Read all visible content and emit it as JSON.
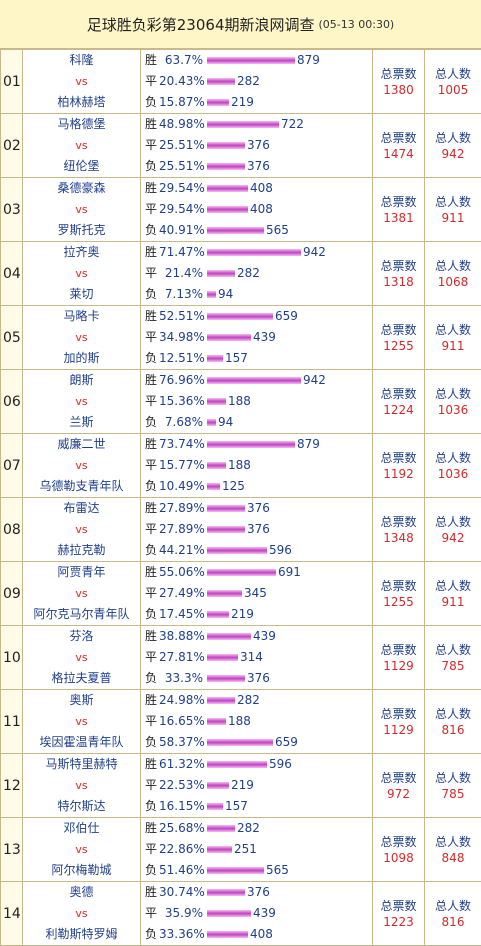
{
  "header": {
    "title": "足球胜负彩第23064期新浪网调查",
    "date": "(05-13 00:30)"
  },
  "labels": {
    "win": "胜",
    "draw": "平",
    "loss": "负",
    "vs": "vs",
    "total_votes": "总票数",
    "total_people": "总人数"
  },
  "colors": {
    "team_blue": "#1f3f8c",
    "accent_red": "#d6292c",
    "bar_magenta": "#c440c4",
    "title_bg": "#fff6c7"
  },
  "matches": [
    {
      "no": "01",
      "home": "科隆",
      "away": "柏林赫塔",
      "win_pct": "63.7%",
      "win": 879,
      "draw_pct": "20.43%",
      "draw": 282,
      "loss_pct": "15.87%",
      "loss": 219,
      "total_votes": "1380",
      "total_people": "1005"
    },
    {
      "no": "02",
      "home": "马格德堡",
      "away": "纽伦堡",
      "win_pct": "48.98%",
      "win": 722,
      "draw_pct": "25.51%",
      "draw": 376,
      "loss_pct": "25.51%",
      "loss": 376,
      "total_votes": "1474",
      "total_people": "942"
    },
    {
      "no": "03",
      "home": "桑德豪森",
      "away": "罗斯托克",
      "win_pct": "29.54%",
      "win": 408,
      "draw_pct": "29.54%",
      "draw": 408,
      "loss_pct": "40.91%",
      "loss": 565,
      "total_votes": "1381",
      "total_people": "911"
    },
    {
      "no": "04",
      "home": "拉齐奥",
      "away": "莱切",
      "win_pct": "71.47%",
      "win": 942,
      "draw_pct": "21.4%",
      "draw": 282,
      "loss_pct": "7.13%",
      "loss": 94,
      "total_votes": "1318",
      "total_people": "1068"
    },
    {
      "no": "05",
      "home": "马略卡",
      "away": "加的斯",
      "win_pct": "52.51%",
      "win": 659,
      "draw_pct": "34.98%",
      "draw": 439,
      "loss_pct": "12.51%",
      "loss": 157,
      "total_votes": "1255",
      "total_people": "911"
    },
    {
      "no": "06",
      "home": "朗斯",
      "away": "兰斯",
      "win_pct": "76.96%",
      "win": 942,
      "draw_pct": "15.36%",
      "draw": 188,
      "loss_pct": "7.68%",
      "loss": 94,
      "total_votes": "1224",
      "total_people": "1036"
    },
    {
      "no": "07",
      "home": "威廉二世",
      "away": "乌德勒支青年队",
      "win_pct": "73.74%",
      "win": 879,
      "draw_pct": "15.77%",
      "draw": 188,
      "loss_pct": "10.49%",
      "loss": 125,
      "total_votes": "1192",
      "total_people": "1036"
    },
    {
      "no": "08",
      "home": "布雷达",
      "away": "赫拉克勒",
      "win_pct": "27.89%",
      "win": 376,
      "draw_pct": "27.89%",
      "draw": 376,
      "loss_pct": "44.21%",
      "loss": 596,
      "total_votes": "1348",
      "total_people": "942"
    },
    {
      "no": "09",
      "home": "阿贾青年",
      "away": "阿尔克马尔青年队",
      "win_pct": "55.06%",
      "win": 691,
      "draw_pct": "27.49%",
      "draw": 345,
      "loss_pct": "17.45%",
      "loss": 219,
      "total_votes": "1255",
      "total_people": "911"
    },
    {
      "no": "10",
      "home": "芬洛",
      "away": "格拉夫夏普",
      "win_pct": "38.88%",
      "win": 439,
      "draw_pct": "27.81%",
      "draw": 314,
      "loss_pct": "33.3%",
      "loss": 376,
      "total_votes": "1129",
      "total_people": "785"
    },
    {
      "no": "11",
      "home": "奥斯",
      "away": "埃因霍温青年队",
      "win_pct": "24.98%",
      "win": 282,
      "draw_pct": "16.65%",
      "draw": 188,
      "loss_pct": "58.37%",
      "loss": 659,
      "total_votes": "1129",
      "total_people": "816"
    },
    {
      "no": "12",
      "home": "马斯特里赫特",
      "away": "特尔斯达",
      "win_pct": "61.32%",
      "win": 596,
      "draw_pct": "22.53%",
      "draw": 219,
      "loss_pct": "16.15%",
      "loss": 157,
      "total_votes": "972",
      "total_people": "785"
    },
    {
      "no": "13",
      "home": "邓伯仕",
      "away": "阿尔梅勒城",
      "win_pct": "25.68%",
      "win": 282,
      "draw_pct": "22.86%",
      "draw": 251,
      "loss_pct": "51.46%",
      "loss": 565,
      "total_votes": "1098",
      "total_people": "848"
    },
    {
      "no": "14",
      "home": "奥德",
      "away": "利勒斯特罗姆",
      "win_pct": "30.74%",
      "win": 376,
      "draw_pct": "35.9%",
      "draw": 439,
      "loss_pct": "33.36%",
      "loss": 408,
      "total_votes": "1223",
      "total_people": "816"
    }
  ]
}
